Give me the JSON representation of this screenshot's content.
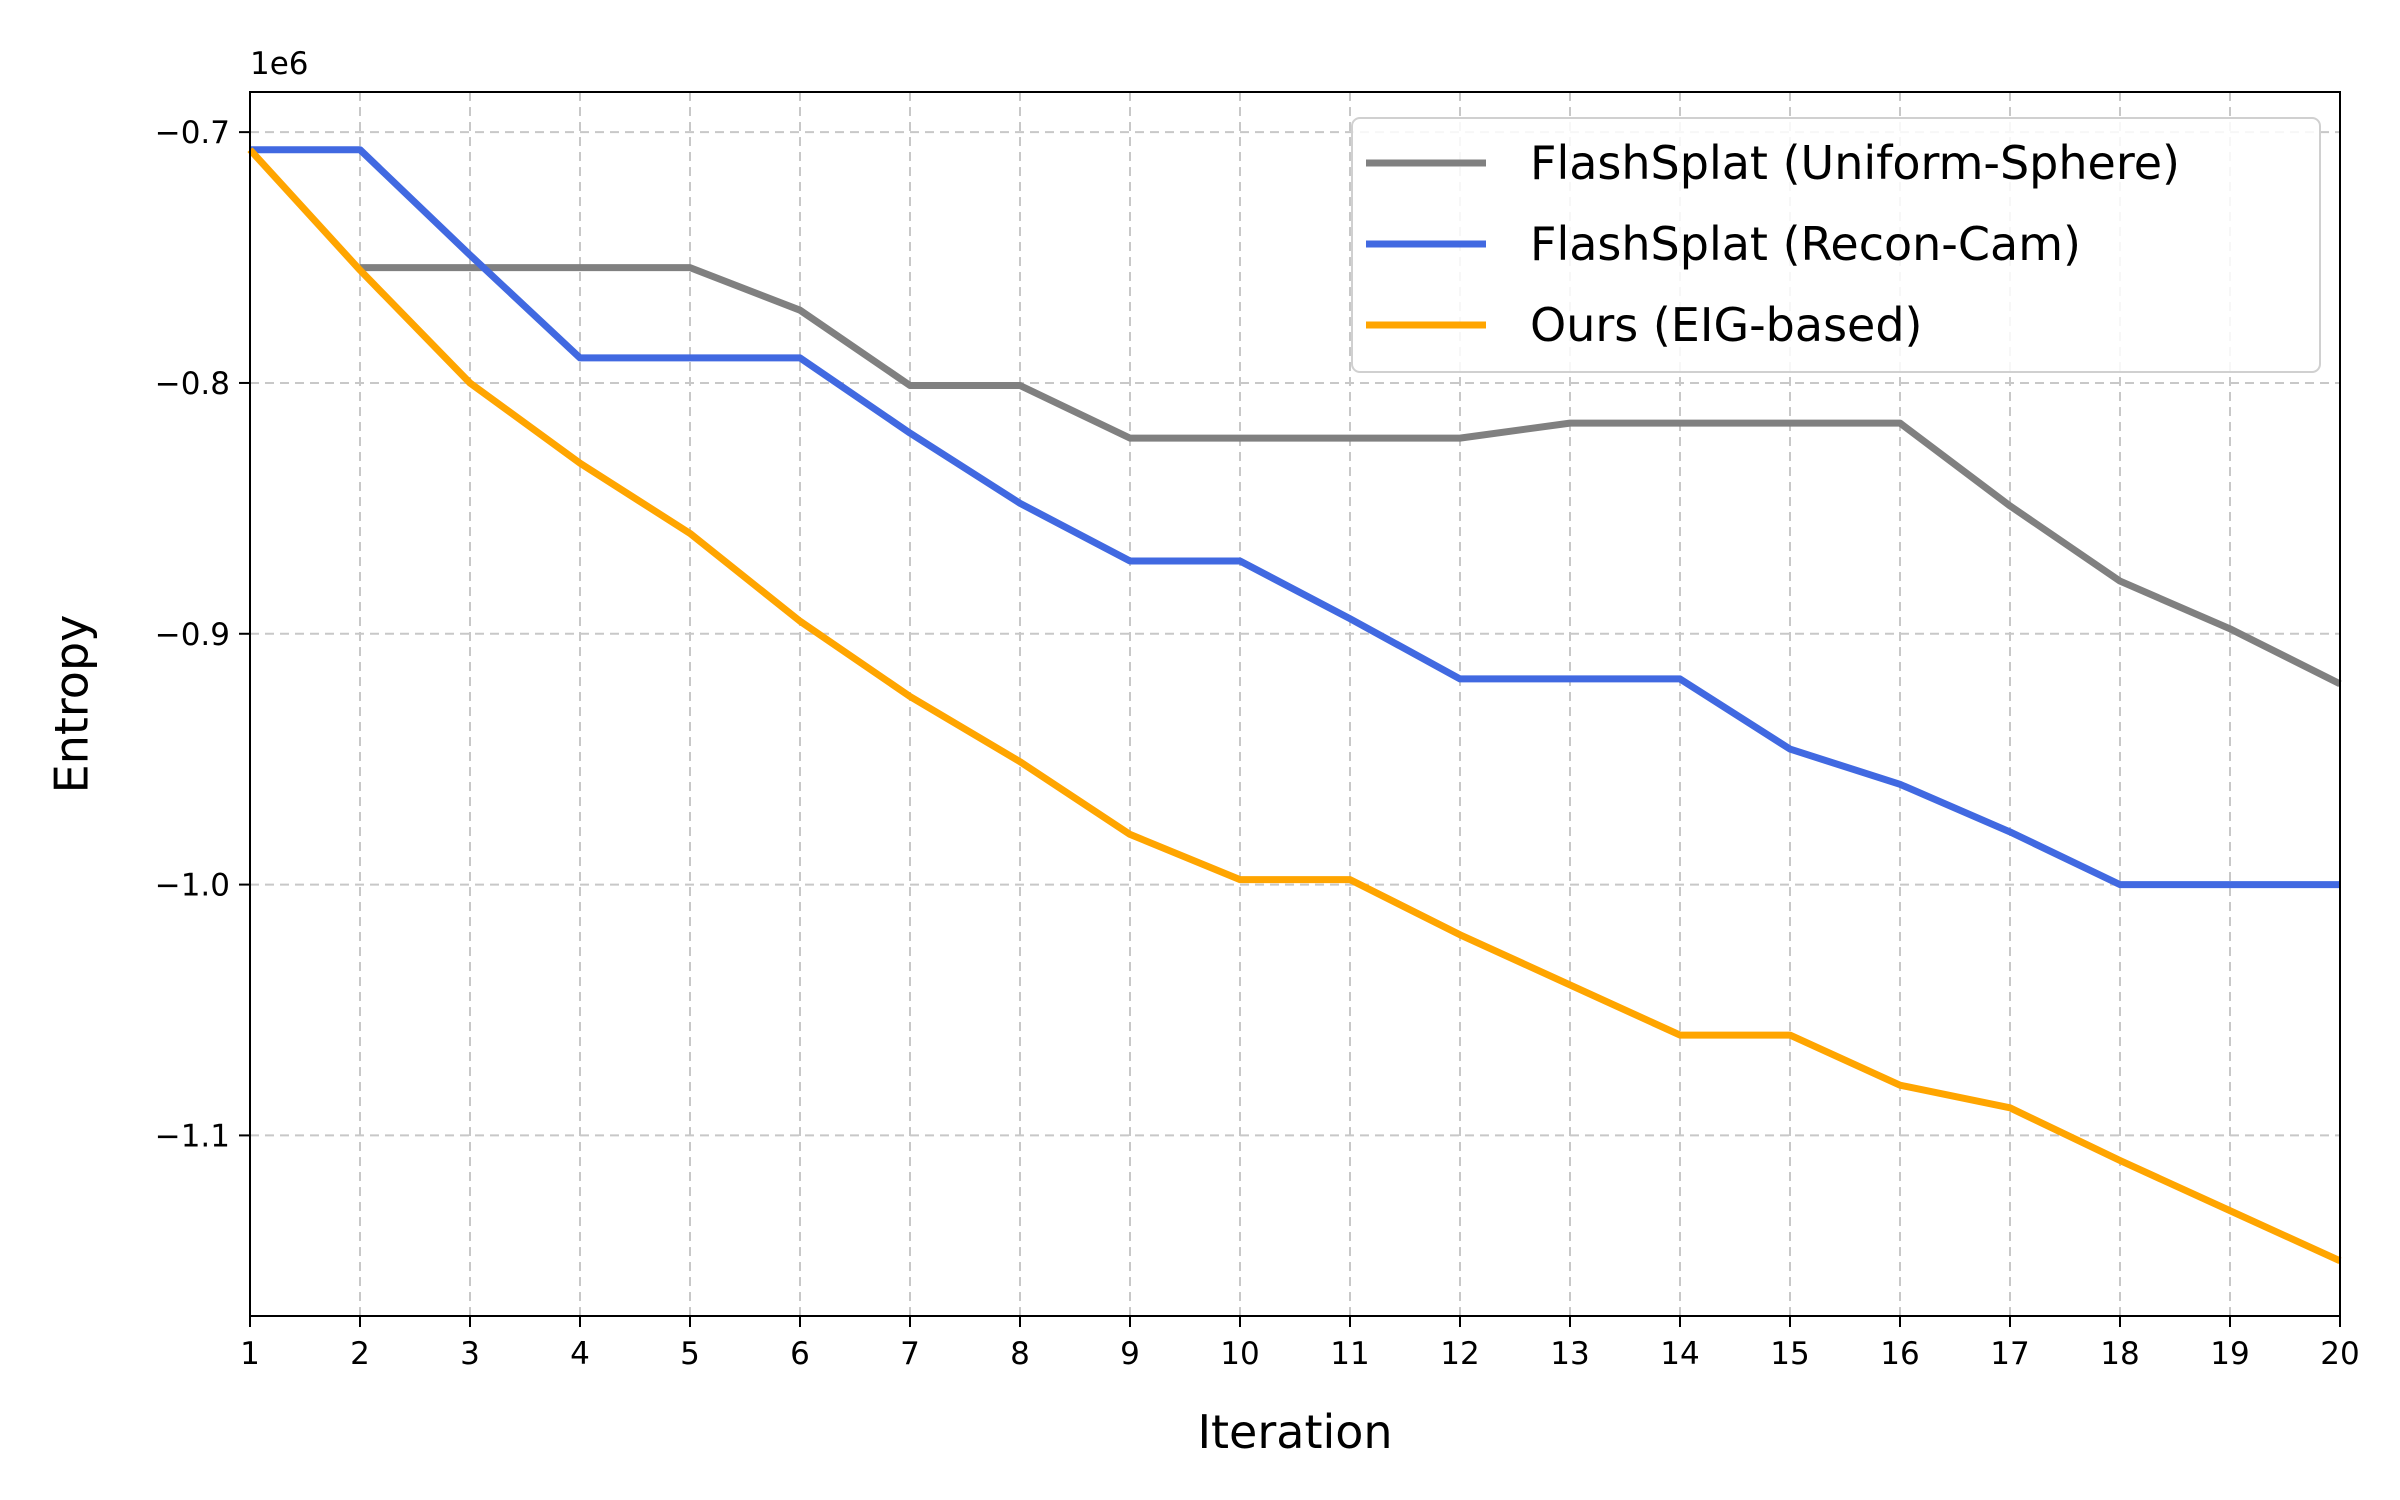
{
  "chart_data": {
    "type": "line",
    "xlabel": "Iteration",
    "ylabel": "Entropy",
    "y_offset_label": "1e6",
    "x": [
      1,
      2,
      3,
      4,
      5,
      6,
      7,
      8,
      9,
      10,
      11,
      12,
      13,
      14,
      15,
      16,
      17,
      18,
      19,
      20
    ],
    "xlim": [
      1,
      20
    ],
    "ylim": [
      -1.172,
      -0.684
    ],
    "x_ticks": [
      "1",
      "2",
      "3",
      "4",
      "5",
      "6",
      "7",
      "8",
      "9",
      "10",
      "11",
      "12",
      "13",
      "14",
      "15",
      "16",
      "17",
      "18",
      "19",
      "20"
    ],
    "y_ticks": [
      {
        "value": -0.7,
        "label": "−0.7"
      },
      {
        "value": -0.8,
        "label": "−0.8"
      },
      {
        "value": -0.9,
        "label": "−0.9"
      },
      {
        "value": -1.0,
        "label": "−1.0"
      },
      {
        "value": -1.1,
        "label": "−1.1"
      }
    ],
    "grid": true,
    "legend_position": "top-right",
    "series": [
      {
        "name": "FlashSplat (Uniform-Sphere)",
        "color": "#808080",
        "x": [
          2,
          3,
          4,
          5,
          6,
          7,
          8,
          9,
          10,
          11,
          12,
          13,
          14,
          15,
          16,
          17,
          18,
          19,
          20
        ],
        "values": [
          -0.754,
          -0.754,
          -0.754,
          -0.754,
          -0.771,
          -0.801,
          -0.801,
          -0.822,
          -0.822,
          -0.822,
          -0.822,
          -0.816,
          -0.816,
          -0.816,
          -0.816,
          -0.849,
          -0.879,
          -0.898,
          -0.92
        ]
      },
      {
        "name": "FlashSplat (Recon-Cam)",
        "color": "#4169e1",
        "x": [
          1,
          2,
          3,
          4,
          5,
          6,
          7,
          8,
          9,
          10,
          11,
          12,
          13,
          14,
          15,
          16,
          17,
          18,
          19,
          20
        ],
        "values": [
          -0.707,
          -0.707,
          -0.749,
          -0.79,
          -0.79,
          -0.79,
          -0.82,
          -0.848,
          -0.871,
          -0.871,
          -0.894,
          -0.918,
          -0.918,
          -0.918,
          -0.946,
          -0.96,
          -0.979,
          -1.0,
          -1.0,
          -1.0
        ]
      },
      {
        "name": "Ours (EIG-based)",
        "color": "#ffa500",
        "x": [
          1,
          2,
          3,
          4,
          5,
          6,
          7,
          8,
          9,
          10,
          11,
          12,
          13,
          14,
          15,
          16,
          17,
          18,
          19,
          20
        ],
        "values": [
          -0.707,
          -0.755,
          -0.8,
          -0.832,
          -0.86,
          -0.895,
          -0.925,
          -0.951,
          -0.98,
          -0.998,
          -0.998,
          -1.02,
          -1.04,
          -1.06,
          -1.06,
          -1.08,
          -1.089,
          -1.11,
          -1.13,
          -1.15
        ]
      }
    ]
  }
}
